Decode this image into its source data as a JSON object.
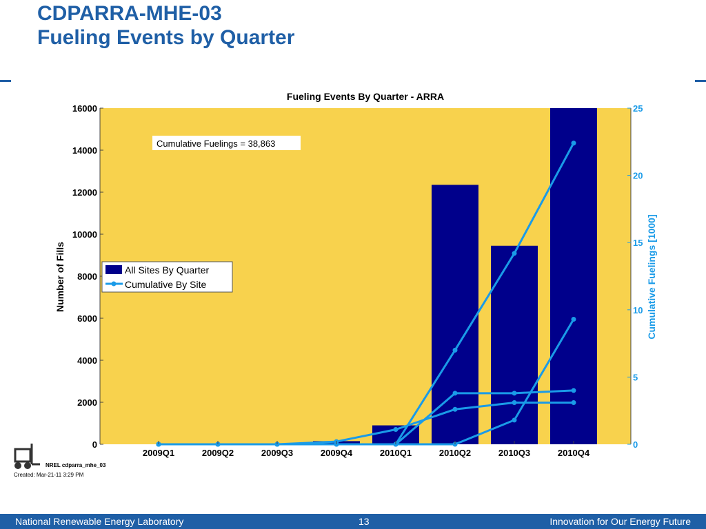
{
  "slide": {
    "title_line1": "CDPARRA-MHE-03",
    "title_line2": "Fueling Events by Quarter",
    "nrel_id": "NREL cdparra_mhe_03",
    "created": "Created: Mar-21-11 3:29 PM",
    "footer_left": "National Renewable Energy Laboratory",
    "footer_page": "13",
    "footer_right": "Innovation for Our Energy Future"
  },
  "colors": {
    "brand_blue": "#1f5fa6",
    "plot_bg": "#f8d24d",
    "bar": "#00008b",
    "line": "#1a9be8"
  },
  "chart_data": {
    "type": "bar",
    "title": "Fueling Events By Quarter - ARRA",
    "ylabel": "Number of Fills",
    "y2label": "Cumulative Fuelings [1000]",
    "categories": [
      "2009Q1",
      "2009Q2",
      "2009Q3",
      "2009Q4",
      "2010Q1",
      "2010Q2",
      "2010Q3",
      "2010Q4"
    ],
    "ylim": [
      0,
      16000
    ],
    "yticks": [
      "0",
      "2000",
      "4000",
      "6000",
      "8000",
      "10000",
      "12000",
      "14000",
      "16000"
    ],
    "y2lim": [
      0,
      25
    ],
    "y2ticks": [
      "0",
      "5",
      "10",
      "15",
      "20",
      "25"
    ],
    "annotation": "Cumulative Fuelings = 38,863",
    "legend": [
      "All Sites By Quarter",
      "Cumulative By Site"
    ],
    "legend_position": "middle-left",
    "series": [
      {
        "name": "All Sites By Quarter",
        "type": "bar",
        "axis": "left",
        "values": [
          0,
          0,
          0,
          150,
          900,
          12350,
          9450,
          16000
        ]
      },
      {
        "type": "line",
        "axis": "right",
        "values": [
          0,
          0,
          0,
          0.2,
          1.1,
          2.6,
          3.1,
          3.1
        ]
      },
      {
        "type": "line",
        "axis": "right",
        "values": [
          0,
          0,
          0,
          0,
          0,
          3.8,
          3.8,
          4.0
        ]
      },
      {
        "type": "line",
        "axis": "right",
        "values": [
          0,
          0,
          0,
          0,
          0,
          0,
          1.8,
          9.3
        ]
      },
      {
        "type": "line",
        "axis": "right",
        "values": [
          0,
          0,
          0,
          0,
          0,
          7.0,
          14.2,
          22.4
        ]
      }
    ]
  }
}
